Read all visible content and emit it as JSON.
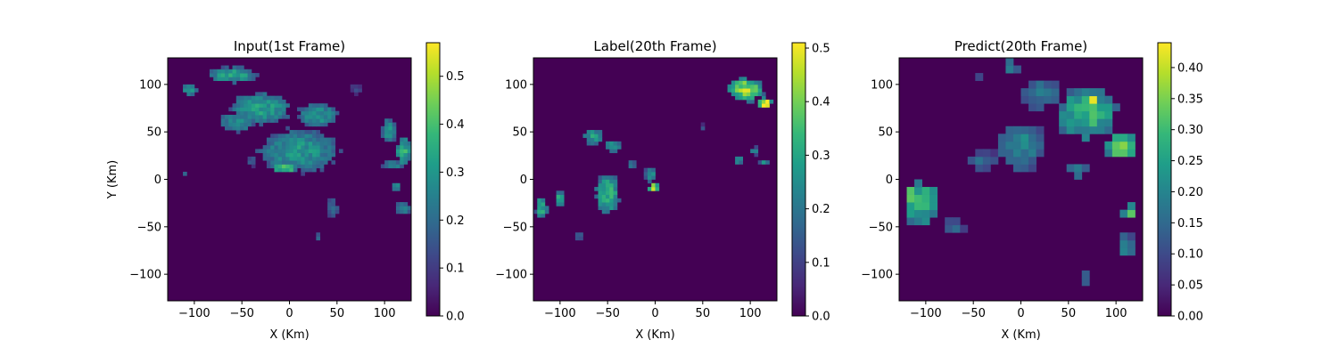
{
  "colormap": "viridis",
  "colormap_stops": [
    "#440154",
    "#482878",
    "#3e4989",
    "#31688e",
    "#26828e",
    "#1f9e89",
    "#35b779",
    "#6ece58",
    "#b5de2b",
    "#fde725"
  ],
  "chart_data": [
    {
      "type": "heatmap",
      "title": "Input(1st Frame)",
      "xlabel": "X (Km)",
      "ylabel": "Y (Km)",
      "xlim": [
        -128,
        128
      ],
      "ylim": [
        -128,
        128
      ],
      "xticks": [
        -100,
        -50,
        0,
        50,
        100
      ],
      "yticks": [
        -100,
        -50,
        0,
        50,
        100
      ],
      "xtick_labels": [
        "−100",
        "−50",
        "0",
        "50",
        "100"
      ],
      "ytick_labels": [
        "−100",
        "−50",
        "0",
        "50",
        "100"
      ],
      "colorbar": {
        "range": [
          0,
          0.57
        ],
        "ticks": [
          0,
          0.1,
          0.2,
          0.3,
          0.4,
          0.5
        ],
        "tick_labels": [
          "0.0",
          "0.1",
          "0.2",
          "0.3",
          "0.4",
          "0.5"
        ]
      },
      "cell_size_km": 4,
      "regions": [
        {
          "cx": -60,
          "cy": 110,
          "rx": 25,
          "ry": 8,
          "value": 0.33
        },
        {
          "cx": -105,
          "cy": 95,
          "rx": 8,
          "ry": 6,
          "value": 0.3
        },
        {
          "cx": -30,
          "cy": 75,
          "rx": 30,
          "ry": 16,
          "value": 0.32
        },
        {
          "cx": 30,
          "cy": 68,
          "rx": 20,
          "ry": 12,
          "value": 0.3
        },
        {
          "cx": -55,
          "cy": 60,
          "rx": 18,
          "ry": 10,
          "value": 0.28
        },
        {
          "cx": 10,
          "cy": 30,
          "rx": 40,
          "ry": 22,
          "value": 0.3
        },
        {
          "cx": -5,
          "cy": 12,
          "rx": 12,
          "ry": 5,
          "value": 0.42
        },
        {
          "cx": 120,
          "cy": 30,
          "rx": 8,
          "ry": 15,
          "value": 0.35
        },
        {
          "cx": 105,
          "cy": 52,
          "rx": 8,
          "ry": 12,
          "value": 0.3
        },
        {
          "cx": 110,
          "cy": 15,
          "rx": 12,
          "ry": 5,
          "value": 0.25
        },
        {
          "cx": 120,
          "cy": -30,
          "rx": 8,
          "ry": 6,
          "value": 0.28
        },
        {
          "cx": 112,
          "cy": -7,
          "rx": 3,
          "ry": 6,
          "value": 0.3
        },
        {
          "cx": 45,
          "cy": -30,
          "rx": 6,
          "ry": 10,
          "value": 0.2
        },
        {
          "cx": 70,
          "cy": 95,
          "rx": 6,
          "ry": 6,
          "value": 0.12
        },
        {
          "cx": -40,
          "cy": 20,
          "rx": 6,
          "ry": 6,
          "value": 0.15
        },
        {
          "cx": -110,
          "cy": 5,
          "rx": 3,
          "ry": 3,
          "value": 0.2
        },
        {
          "cx": 30,
          "cy": -60,
          "rx": 4,
          "ry": 4,
          "value": 0.18
        }
      ]
    },
    {
      "type": "heatmap",
      "title": "Label(20th Frame)",
      "xlabel": "X (Km)",
      "ylabel": "",
      "xlim": [
        -128,
        128
      ],
      "ylim": [
        -128,
        128
      ],
      "xticks": [
        -100,
        -50,
        0,
        50,
        100
      ],
      "yticks": [
        -100,
        -50,
        0,
        50,
        100
      ],
      "xtick_labels": [
        "−100",
        "−50",
        "0",
        "50",
        "100"
      ],
      "ytick_labels": [
        "−100",
        "−50",
        "0",
        "50",
        "100"
      ],
      "colorbar": {
        "range": [
          0,
          0.51
        ],
        "ticks": [
          0,
          0.1,
          0.2,
          0.3,
          0.4,
          0.5
        ],
        "tick_labels": [
          "0.0",
          "0.1",
          "0.2",
          "0.3",
          "0.4",
          "0.5"
        ]
      },
      "cell_size_km": 4,
      "regions": [
        {
          "cx": 95,
          "cy": 95,
          "rx": 18,
          "ry": 12,
          "value": 0.42
        },
        {
          "cx": 115,
          "cy": 80,
          "rx": 8,
          "ry": 6,
          "value": 0.5
        },
        {
          "cx": -50,
          "cy": -15,
          "rx": 12,
          "ry": 20,
          "value": 0.33
        },
        {
          "cx": -65,
          "cy": 45,
          "rx": 10,
          "ry": 8,
          "value": 0.28
        },
        {
          "cx": -45,
          "cy": 35,
          "rx": 8,
          "ry": 6,
          "value": 0.3
        },
        {
          "cx": -120,
          "cy": -30,
          "rx": 6,
          "ry": 12,
          "value": 0.32
        },
        {
          "cx": -100,
          "cy": -20,
          "rx": 5,
          "ry": 8,
          "value": 0.3
        },
        {
          "cx": -2,
          "cy": -8,
          "rx": 5,
          "ry": 4,
          "value": 0.48
        },
        {
          "cx": -5,
          "cy": 5,
          "rx": 6,
          "ry": 8,
          "value": 0.25
        },
        {
          "cx": -25,
          "cy": 15,
          "rx": 5,
          "ry": 5,
          "value": 0.2
        },
        {
          "cx": 105,
          "cy": 30,
          "rx": 4,
          "ry": 4,
          "value": 0.25
        },
        {
          "cx": 88,
          "cy": 20,
          "rx": 3,
          "ry": 5,
          "value": 0.28
        },
        {
          "cx": 115,
          "cy": 18,
          "rx": 5,
          "ry": 3,
          "value": 0.25
        },
        {
          "cx": -80,
          "cy": -60,
          "rx": 3,
          "ry": 3,
          "value": 0.2
        },
        {
          "cx": 50,
          "cy": 55,
          "rx": 3,
          "ry": 3,
          "value": 0.12
        }
      ]
    },
    {
      "type": "heatmap",
      "title": "Predict(20th Frame)",
      "xlabel": "X (Km)",
      "ylabel": "",
      "xlim": [
        -128,
        128
      ],
      "ylim": [
        -128,
        128
      ],
      "xticks": [
        -100,
        -50,
        0,
        50,
        100
      ],
      "yticks": [
        -100,
        -50,
        0,
        50,
        100
      ],
      "xtick_labels": [
        "−100",
        "−50",
        "0",
        "50",
        "100"
      ],
      "ytick_labels": [
        "−100",
        "−50",
        "0",
        "50",
        "100"
      ],
      "colorbar": {
        "range": [
          0,
          0.44
        ],
        "ticks": [
          0,
          0.05,
          0.1,
          0.15,
          0.2,
          0.25,
          0.3,
          0.35,
          0.4
        ],
        "tick_labels": [
          "0.00",
          "0.05",
          "0.10",
          "0.15",
          "0.20",
          "0.25",
          "0.30",
          "0.35",
          "0.40"
        ]
      },
      "cell_size_km": 8,
      "regions": [
        {
          "cx": 70,
          "cy": 70,
          "rx": 30,
          "ry": 28,
          "value": 0.28
        },
        {
          "cx": 105,
          "cy": 35,
          "rx": 18,
          "ry": 12,
          "value": 0.35
        },
        {
          "cx": 75,
          "cy": 80,
          "rx": 8,
          "ry": 8,
          "value": 0.42
        },
        {
          "cx": -105,
          "cy": -25,
          "rx": 18,
          "ry": 22,
          "value": 0.3
        },
        {
          "cx": -115,
          "cy": -15,
          "rx": 8,
          "ry": 6,
          "value": 0.4
        },
        {
          "cx": 0,
          "cy": 35,
          "rx": 25,
          "ry": 25,
          "value": 0.2
        },
        {
          "cx": 20,
          "cy": 90,
          "rx": 20,
          "ry": 15,
          "value": 0.18
        },
        {
          "cx": -40,
          "cy": 20,
          "rx": 15,
          "ry": 10,
          "value": 0.15
        },
        {
          "cx": 115,
          "cy": -35,
          "rx": 8,
          "ry": 8,
          "value": 0.35
        },
        {
          "cx": 110,
          "cy": -70,
          "rx": 10,
          "ry": 12,
          "value": 0.2
        },
        {
          "cx": 60,
          "cy": 10,
          "rx": 10,
          "ry": 8,
          "value": 0.2
        },
        {
          "cx": -70,
          "cy": -50,
          "rx": 12,
          "ry": 8,
          "value": 0.15
        },
        {
          "cx": -10,
          "cy": 118,
          "rx": 8,
          "ry": 8,
          "value": 0.2
        },
        {
          "cx": 65,
          "cy": -105,
          "rx": 5,
          "ry": 10,
          "value": 0.15
        },
        {
          "cx": -45,
          "cy": 105,
          "rx": 8,
          "ry": 4,
          "value": 0.12
        }
      ]
    }
  ]
}
